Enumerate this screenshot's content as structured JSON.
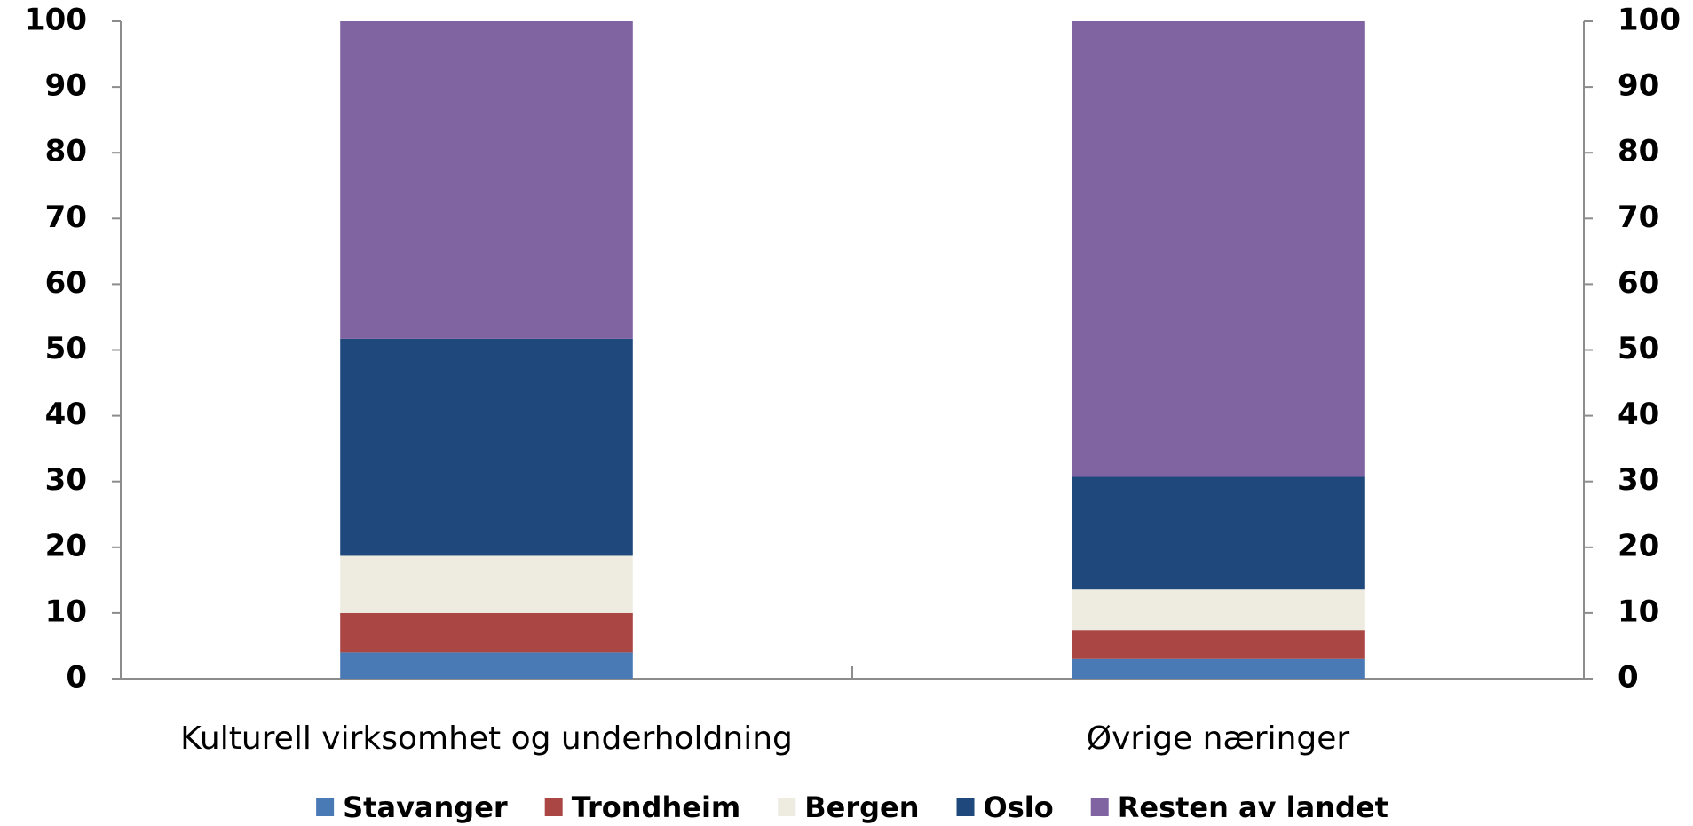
{
  "chart_data": {
    "type": "stacked_bar",
    "categories": [
      "Kulturell virksomhet og underholdning",
      "Øvrige næringer"
    ],
    "series": [
      {
        "name": "Stavanger",
        "color": "#4a7ab5",
        "values": [
          4,
          3
        ]
      },
      {
        "name": "Trondheim",
        "color": "#aa4643",
        "values": [
          6,
          4.4
        ]
      },
      {
        "name": "Bergen",
        "color": "#eeece1",
        "values": [
          8.7,
          6.2
        ]
      },
      {
        "name": "Oslo",
        "color": "#1f497d",
        "values": [
          33,
          17.1
        ]
      },
      {
        "name": "Resten av landet",
        "color": "#8064a2",
        "values": [
          48.3,
          69.3
        ]
      }
    ],
    "ylim": [
      0,
      100
    ],
    "yticks": [
      0,
      10,
      20,
      30,
      40,
      50,
      60,
      70,
      80,
      90,
      100
    ],
    "y2lim": [
      0,
      100
    ],
    "y2ticks": [
      0,
      10,
      20,
      30,
      40,
      50,
      60,
      70,
      80,
      90,
      100
    ],
    "grid": false,
    "legend": "bottom"
  }
}
